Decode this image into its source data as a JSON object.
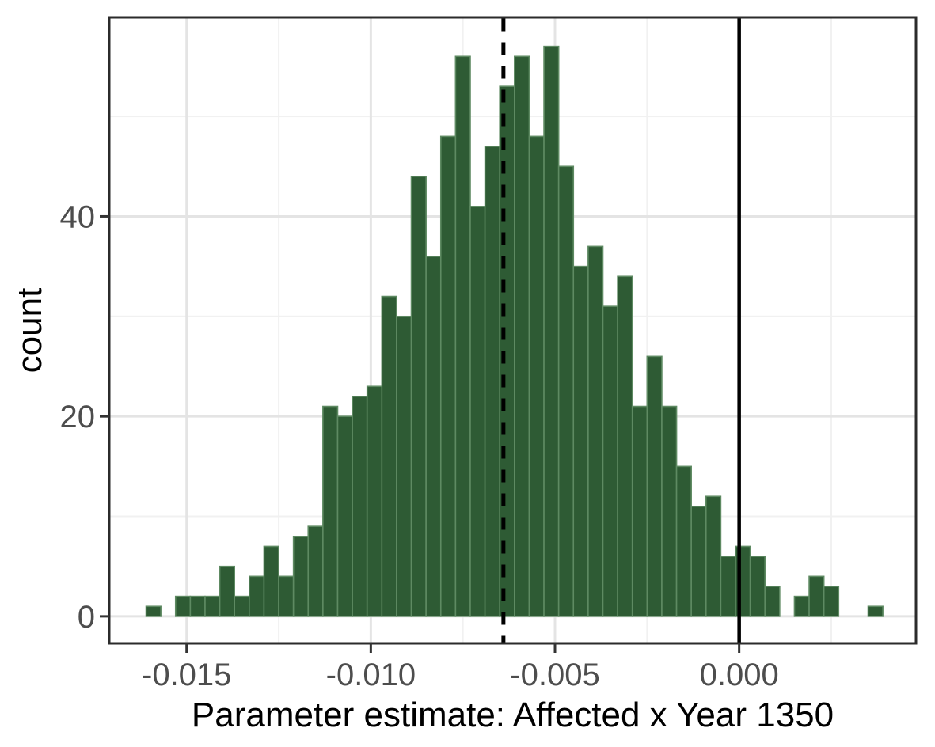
{
  "chart_data": {
    "type": "bar",
    "subtype": "histogram",
    "title": "",
    "xlabel": "Parameter estimate: Affected x Year 1350",
    "ylabel": "count",
    "bins": {
      "start": -0.0161,
      "width": 0.0004,
      "counts": [
        1,
        0,
        2,
        2,
        2,
        5,
        2,
        4,
        7,
        4,
        8,
        9,
        21,
        20,
        22,
        23,
        32,
        30,
        44,
        36,
        48,
        56,
        41,
        47,
        53,
        56,
        48,
        57,
        45,
        35,
        37,
        31,
        34,
        21,
        26,
        21,
        15,
        11,
        12,
        6,
        7,
        6,
        3,
        0,
        2,
        4,
        3,
        0,
        0,
        1
      ]
    },
    "xlim": [
      -0.0171,
      0.0048
    ],
    "ylim": [
      -2.7,
      59.9
    ],
    "x_ticks": {
      "values": [
        -0.015,
        -0.01,
        -0.005,
        0.0
      ],
      "labels": [
        "-0.015",
        "-0.010",
        "-0.005",
        "0.000"
      ]
    },
    "y_ticks": {
      "values": [
        0,
        20,
        40
      ],
      "labels": [
        "0",
        "20",
        "40"
      ]
    },
    "x_minor_ticks": [
      -0.0125,
      -0.0075,
      -0.0025,
      0.0025
    ],
    "y_minor_ticks": [
      10,
      30,
      50
    ],
    "reference_lines": [
      {
        "name": "estimate-mean-line",
        "value": -0.0064,
        "style": "dashed",
        "color": "#000000"
      },
      {
        "name": "zero-line",
        "value": 0.0,
        "style": "solid",
        "color": "#000000"
      }
    ],
    "grid": true,
    "legend": false,
    "style": {
      "bar_fill": "#2E5B34",
      "bar_stroke": "#5E8A62",
      "grid_major": "#E4E4E4",
      "grid_minor": "#F1F1F1",
      "panel_border": "#2B2B2B",
      "tick_mark": "#333333",
      "tick_label_color": "#4D4D4D",
      "axis_title_color": "#000000",
      "background": "#FFFFFF"
    }
  }
}
